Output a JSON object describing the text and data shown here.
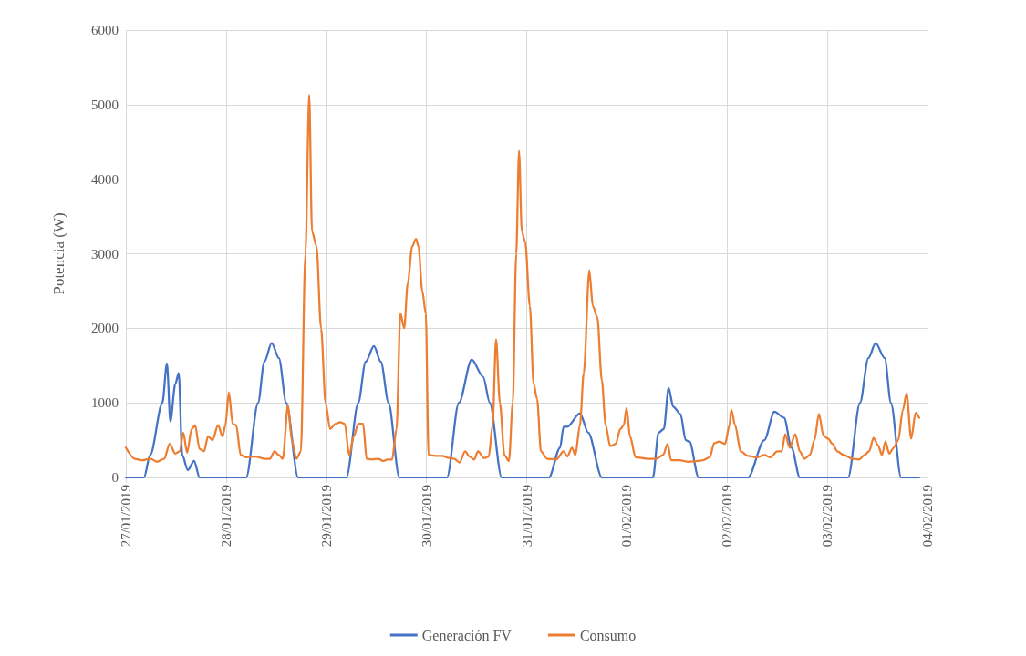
{
  "chart_data": {
    "type": "line",
    "ylabel": "Potencia (W)",
    "ylim": [
      0,
      6000
    ],
    "yticks": [
      0,
      1000,
      2000,
      3000,
      4000,
      5000,
      6000
    ],
    "xlim": [
      "2019-01-27",
      "2019-02-04"
    ],
    "xticks": [
      {
        "value": "2019-01-27",
        "label": "27/01/2019"
      },
      {
        "value": "2019-01-28",
        "label": "28/01/2019"
      },
      {
        "value": "2019-01-29",
        "label": "29/01/2019"
      },
      {
        "value": "2019-01-30",
        "label": "30/01/2019"
      },
      {
        "value": "2019-01-31",
        "label": "31/01/2019"
      },
      {
        "value": "2019-02-01",
        "label": "01/02/2019"
      },
      {
        "value": "2019-02-02",
        "label": "02/02/2019"
      },
      {
        "value": "2019-02-03",
        "label": "03/02/2019"
      },
      {
        "value": "2019-02-04",
        "label": "04/02/2019"
      }
    ],
    "grid": true,
    "legend": "bottom",
    "marker": "none",
    "line_style": "solid",
    "series": [
      {
        "name": "Generación FV",
        "color": "#4472c4",
        "x": [
          "2019-01-27T00:00",
          "2019-01-27T04:20",
          "2019-01-27T05:50",
          "2019-01-27T08:45",
          "2019-01-27T09:50",
          "2019-01-27T10:40",
          "2019-01-27T11:50",
          "2019-01-27T12:40",
          "2019-01-27T13:30",
          "2019-01-27T14:50",
          "2019-01-27T16:20",
          "2019-01-27T17:40",
          "2019-01-28T04:50",
          "2019-01-28T07:40",
          "2019-01-28T09:10",
          "2019-01-28T10:55",
          "2019-01-28T12:40",
          "2019-01-28T14:25",
          "2019-01-28T17:15",
          "2019-01-29T04:50",
          "2019-01-29T07:40",
          "2019-01-29T09:25",
          "2019-01-29T11:25",
          "2019-01-29T13:05",
          "2019-01-29T14:55",
          "2019-01-29T17:30",
          "2019-01-30T04:55",
          "2019-01-30T07:45",
          "2019-01-30T10:50",
          "2019-01-30T13:35",
          "2019-01-30T15:10",
          "2019-01-30T18:00",
          "2019-01-31T05:20",
          "2019-01-31T08:00",
          "2019-01-31T08:50",
          "2019-01-31T09:45",
          "2019-01-31T12:45",
          "2019-01-31T14:45",
          "2019-01-31T18:00",
          "2019-02-01T06:15",
          "2019-02-01T07:35",
          "2019-02-01T08:50",
          "2019-02-01T10:00",
          "2019-02-01T11:05",
          "2019-02-01T12:50",
          "2019-02-01T14:05",
          "2019-02-01T15:00",
          "2019-02-01T17:10",
          "2019-02-02T05:00",
          "2019-02-02T08:55",
          "2019-02-02T11:20",
          "2019-02-02T13:40",
          "2019-02-02T15:25",
          "2019-02-02T17:25",
          "2019-02-03T05:00",
          "2019-02-03T07:50",
          "2019-02-03T09:50",
          "2019-02-03T11:35",
          "2019-02-03T13:45",
          "2019-02-03T15:15",
          "2019-02-03T17:40",
          "2019-02-03T22:00"
        ],
        "values": [
          0,
          0,
          300,
          1000,
          1530,
          750,
          1250,
          1400,
          300,
          100,
          220,
          0,
          0,
          1000,
          1550,
          1800,
          1600,
          1000,
          0,
          0,
          1000,
          1550,
          1760,
          1550,
          1000,
          0,
          0,
          1000,
          1580,
          1350,
          1000,
          0,
          0,
          400,
          680,
          680,
          860,
          600,
          0,
          0,
          600,
          650,
          1200,
          950,
          850,
          500,
          480,
          0,
          0,
          500,
          880,
          800,
          400,
          0,
          0,
          1000,
          1600,
          1800,
          1600,
          1000,
          0,
          0
        ]
      },
      {
        "name": "Consumo",
        "color": "#ed7d31",
        "x": [
          "2019-01-27T00:00",
          "2019-01-27T02:10",
          "2019-01-27T03:45",
          "2019-01-27T05:55",
          "2019-01-27T07:25",
          "2019-01-27T09:10",
          "2019-01-27T10:30",
          "2019-01-27T11:50",
          "2019-01-27T12:55",
          "2019-01-27T13:45",
          "2019-01-27T14:40",
          "2019-01-27T15:45",
          "2019-01-27T16:35",
          "2019-01-27T17:40",
          "2019-01-27T18:45",
          "2019-01-27T19:40",
          "2019-01-27T20:45",
          "2019-01-27T22:05",
          "2019-01-27T23:10",
          "2019-01-27T23:50",
          "2019-01-28T00:40",
          "2019-01-28T01:35",
          "2019-01-28T02:25",
          "2019-01-28T03:30",
          "2019-01-28T04:50",
          "2019-01-28T07:00",
          "2019-01-28T09:10",
          "2019-01-28T10:30",
          "2019-01-28T11:35",
          "2019-01-28T12:40",
          "2019-01-28T13:35",
          "2019-01-28T14:50",
          "2019-01-28T15:45",
          "2019-01-28T16:50",
          "2019-01-28T17:55",
          "2019-01-28T19:00",
          "2019-01-28T19:55",
          "2019-01-28T20:35",
          "2019-01-28T21:40",
          "2019-01-28T22:45",
          "2019-01-28T23:50",
          "2019-01-29T00:55",
          "2019-01-29T02:15",
          "2019-01-29T03:20",
          "2019-01-29T04:25",
          "2019-01-29T05:30",
          "2019-01-29T06:35",
          "2019-01-29T07:40",
          "2019-01-29T08:50",
          "2019-01-29T09:40",
          "2019-01-29T11:00",
          "2019-01-29T12:30",
          "2019-01-29T13:35",
          "2019-01-29T14:40",
          "2019-01-29T15:45",
          "2019-01-29T16:50",
          "2019-01-29T17:45",
          "2019-01-29T18:40",
          "2019-01-29T19:30",
          "2019-01-29T20:35",
          "2019-01-29T21:30",
          "2019-01-29T22:05",
          "2019-01-29T23:00",
          "2019-01-29T23:50",
          "2019-01-30T00:30",
          "2019-01-30T02:15",
          "2019-01-30T03:50",
          "2019-01-30T05:20",
          "2019-01-30T06:40",
          "2019-01-30T07:55",
          "2019-01-30T09:15",
          "2019-01-30T10:20",
          "2019-01-30T11:25",
          "2019-01-30T12:20",
          "2019-01-30T13:50",
          "2019-01-30T14:55",
          "2019-01-30T15:50",
          "2019-01-30T16:40",
          "2019-01-30T17:35",
          "2019-01-30T18:40",
          "2019-01-30T19:45",
          "2019-01-30T20:40",
          "2019-01-30T21:30",
          "2019-01-30T22:10",
          "2019-01-30T22:50",
          "2019-01-30T23:40",
          "2019-01-31T00:45",
          "2019-01-31T01:40",
          "2019-01-31T02:30",
          "2019-01-31T03:25",
          "2019-01-31T04:55",
          "2019-01-31T07:05",
          "2019-01-31T08:50",
          "2019-01-31T09:45",
          "2019-01-31T10:50",
          "2019-01-31T11:40",
          "2019-01-31T12:45",
          "2019-01-31T13:40",
          "2019-01-31T15:00",
          "2019-01-31T15:50",
          "2019-01-31T16:55",
          "2019-01-31T18:00",
          "2019-01-31T18:55",
          "2019-01-31T20:00",
          "2019-01-31T21:20",
          "2019-01-31T22:25",
          "2019-01-31T23:15",
          "2019-01-31T23:55",
          "2019-02-01T00:45",
          "2019-02-01T02:05",
          "2019-02-01T04:55",
          "2019-02-01T07:05",
          "2019-02-01T08:40",
          "2019-02-01T09:45",
          "2019-02-01T10:35",
          "2019-02-01T12:35",
          "2019-02-01T14:45",
          "2019-02-01T16:55",
          "2019-02-01T18:15",
          "2019-02-01T19:50",
          "2019-02-01T20:55",
          "2019-02-01T22:10",
          "2019-02-01T23:30",
          "2019-02-02T00:35",
          "2019-02-02T01:00",
          "2019-02-02T01:55",
          "2019-02-02T03:15",
          "2019-02-02T05:00",
          "2019-02-02T07:10",
          "2019-02-02T08:55",
          "2019-02-02T10:25",
          "2019-02-02T12:00",
          "2019-02-02T13:05",
          "2019-02-02T13:55",
          "2019-02-02T15:00",
          "2019-02-02T16:20",
          "2019-02-02T17:25",
          "2019-02-02T18:30",
          "2019-02-02T19:50",
          "2019-02-02T20:55",
          "2019-02-02T22:00",
          "2019-02-02T23:05",
          "2019-02-03T00:10",
          "2019-02-03T01:15",
          "2019-02-03T02:25",
          "2019-02-03T03:55",
          "2019-02-03T06:05",
          "2019-02-03T07:35",
          "2019-02-03T08:55",
          "2019-02-03T10:00",
          "2019-02-03T11:05",
          "2019-02-03T12:10",
          "2019-02-03T13:05",
          "2019-02-03T13:55",
          "2019-02-03T14:50",
          "2019-02-03T15:55",
          "2019-02-03T17:00",
          "2019-02-03T18:05",
          "2019-02-03T19:00",
          "2019-02-03T20:05",
          "2019-02-03T21:10",
          "2019-02-03T22:00"
        ],
        "values": [
          400,
          250,
          230,
          250,
          210,
          250,
          450,
          320,
          350,
          600,
          330,
          650,
          700,
          380,
          350,
          550,
          500,
          700,
          550,
          700,
          1140,
          720,
          700,
          300,
          270,
          280,
          250,
          250,
          350,
          300,
          250,
          970,
          500,
          250,
          350,
          3000,
          5130,
          3300,
          3100,
          2000,
          1000,
          650,
          720,
          740,
          720,
          300,
          550,
          720,
          720,
          250,
          240,
          250,
          220,
          240,
          240,
          650,
          2200,
          2000,
          2600,
          3100,
          3200,
          3100,
          2500,
          2200,
          300,
          290,
          290,
          260,
          250,
          200,
          350,
          280,
          240,
          350,
          260,
          280,
          700,
          1850,
          1000,
          300,
          220,
          1000,
          3000,
          4380,
          3300,
          3150,
          2300,
          1250,
          1050,
          350,
          250,
          240,
          350,
          280,
          400,
          300,
          700,
          1400,
          2780,
          2300,
          2150,
          1300,
          700,
          420,
          450,
          650,
          700,
          930,
          550,
          270,
          250,
          250,
          300,
          450,
          230,
          230,
          210,
          220,
          230,
          270,
          460,
          480,
          450,
          700,
          910,
          700,
          350,
          290,
          270,
          300,
          270,
          350,
          350,
          580,
          400,
          580,
          350,
          250,
          300,
          500,
          850,
          560,
          520,
          450,
          350,
          300,
          250,
          240,
          300,
          350,
          530,
          430,
          300,
          480,
          320,
          400,
          500,
          900,
          1130,
          520,
          870,
          800
        ]
      }
    ]
  }
}
